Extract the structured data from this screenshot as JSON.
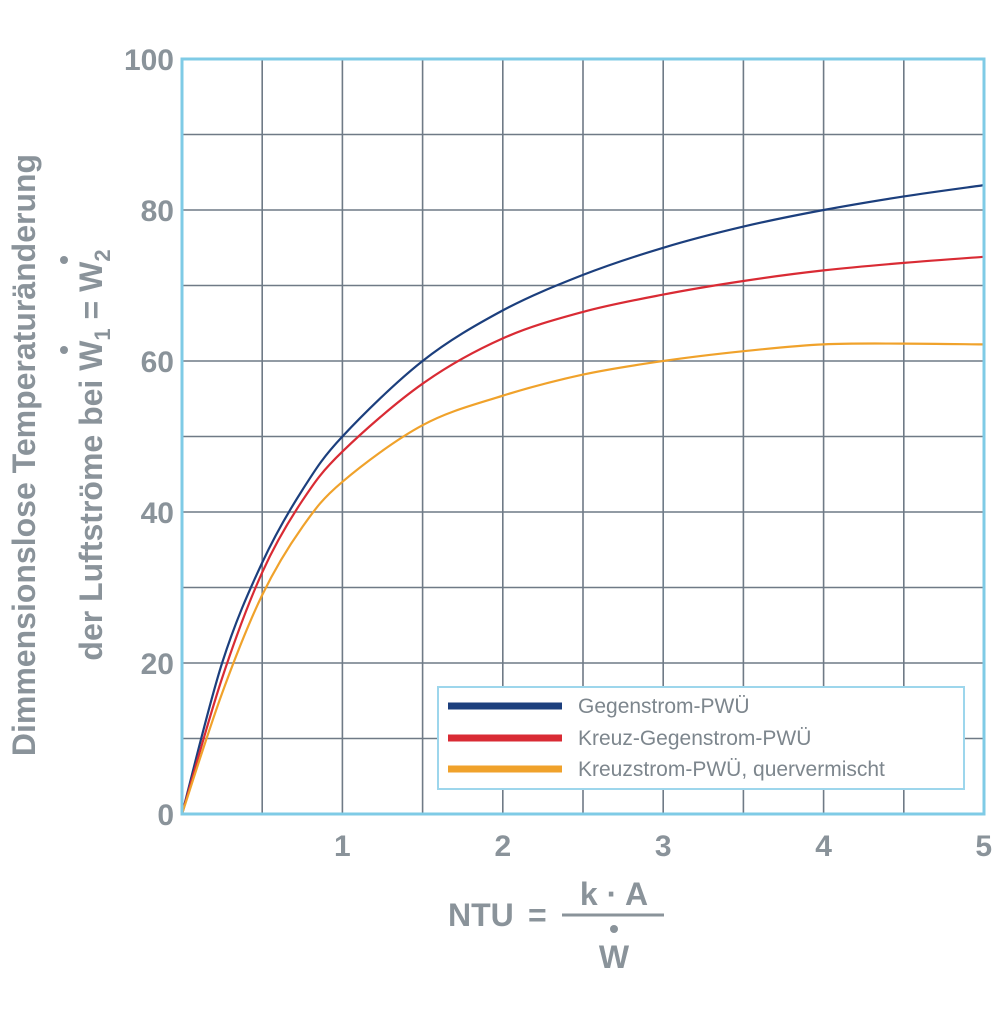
{
  "chart_data": {
    "type": "line",
    "title": "",
    "ylabel_line1": "Dimmensionslose Temperaturänderung",
    "ylabel_line2_prefix": "der Luftströme bei ",
    "ylabel_w": "W",
    "ylabel_sub1": "1",
    "ylabel_eq": " = ",
    "ylabel_sub2": "2",
    "xlabel_prefix": "NTU",
    "xlabel_equals": "=",
    "xlabel_numerator": "k · A",
    "xlabel_denominator": "W",
    "xlim": [
      0,
      5
    ],
    "ylim": [
      0,
      100
    ],
    "x_ticks": [
      "1",
      "2",
      "3",
      "4",
      "5"
    ],
    "y_ticks": [
      "0",
      "20",
      "40",
      "60",
      "80",
      "100"
    ],
    "grid": true,
    "grid_x_step": 0.5,
    "grid_y_step": 10,
    "legend_position": "bottom-right",
    "series": [
      {
        "name": "Gegenstrom-PWÜ",
        "color": "#1c3f7d",
        "x": [
          0,
          0.25,
          0.5,
          0.75,
          1,
          1.5,
          2,
          2.5,
          3,
          3.5,
          4,
          4.5,
          5
        ],
        "y": [
          0,
          20,
          33.3,
          42.9,
          50,
          60,
          66.7,
          71.4,
          75,
          77.8,
          80,
          81.8,
          83.3
        ]
      },
      {
        "name": "Kreuz-Gegenstrom-PWÜ",
        "color": "#d92b34",
        "x": [
          0,
          0.25,
          0.5,
          0.75,
          1,
          1.5,
          2,
          2.5,
          3,
          3.5,
          4,
          4.5,
          5
        ],
        "y": [
          0,
          18,
          32,
          41.5,
          48,
          57,
          63,
          66.5,
          68.8,
          70.6,
          72,
          73,
          73.8
        ]
      },
      {
        "name": "Kreuzstrom-PWÜ, quervermischt",
        "color": "#f0a22b",
        "x": [
          0,
          0.25,
          0.5,
          0.75,
          1,
          1.5,
          2,
          2.5,
          3,
          3.5,
          4,
          4.5,
          5
        ],
        "y": [
          0,
          16,
          29,
          38,
          44,
          51.5,
          55.4,
          58.2,
          60,
          61.3,
          62.2,
          62.3,
          62.2
        ]
      }
    ],
    "colors": {
      "frame": "#7fcbe6",
      "grid": "#6f7a86",
      "text": "#8a939a"
    }
  }
}
